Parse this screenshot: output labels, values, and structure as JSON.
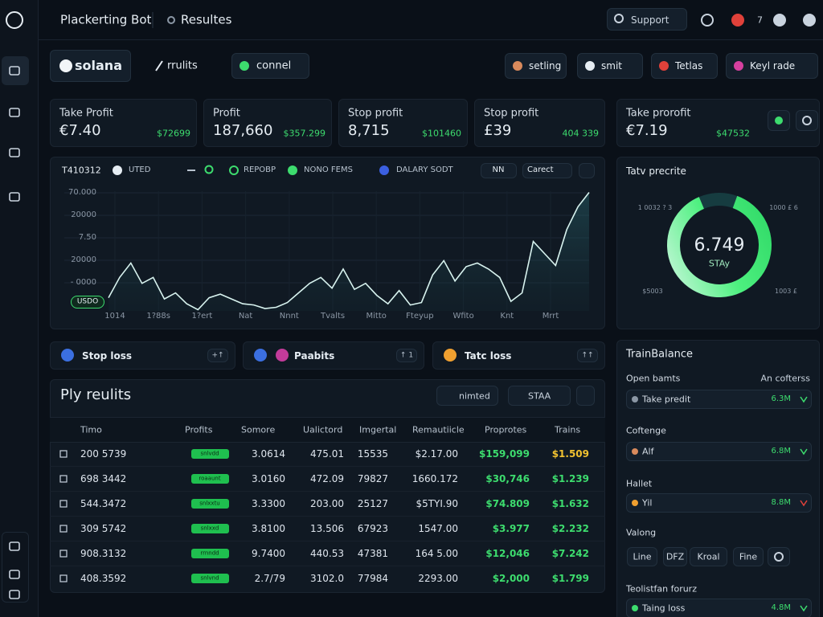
{
  "topbar": {
    "app": "Plackerting Bot",
    "page": "Resultes",
    "search": "Support",
    "badge": "7"
  },
  "toolbar": {
    "brand": "solana",
    "results": "rrulits",
    "connect": "connel",
    "tabs": [
      "setling",
      "smit",
      "Tetlas",
      "Keyl rade"
    ]
  },
  "stats": [
    {
      "label": "Take Profit",
      "value": "€7.40",
      "change": "$72699"
    },
    {
      "label": "Profit",
      "value": "187,660",
      "change": "$357.299"
    },
    {
      "label": "Stop profit",
      "value": "8,715",
      "change": "$101460"
    },
    {
      "label": "Stop profit",
      "value": "£39",
      "change": "404 339"
    }
  ],
  "side_stat": {
    "label": "Take prorofit",
    "value": "€7.19",
    "change": "$47532"
  },
  "chart": {
    "id": "T410312",
    "legend": [
      "UTED",
      "REPOBP",
      "NONO FEMS",
      "DALARY SODT"
    ],
    "buttons": [
      "NN",
      "Carect"
    ],
    "badge": "USDO",
    "y_labels": [
      "70.000",
      "20000",
      "7.50",
      "20000",
      "- 0000"
    ],
    "x_labels": [
      "1014",
      "1?88s",
      "1?ert",
      "Nat",
      "Nnnt",
      "Tvalts",
      "Mitto",
      "Fteyup",
      "Wfito",
      "Knt",
      "Mrrt"
    ],
    "ylim": [
      0,
      100
    ],
    "values": [
      11,
      28,
      40,
      23,
      28,
      10,
      15,
      6,
      1,
      11,
      14,
      10,
      6,
      5,
      2,
      3,
      7,
      15,
      23,
      28,
      19,
      35,
      18,
      23,
      13,
      6,
      17,
      5,
      7,
      30,
      42,
      25,
      37,
      40,
      35,
      28,
      8,
      15,
      58,
      48,
      38,
      68,
      87,
      99
    ]
  },
  "donut": {
    "title": "Tatv precrite",
    "value": "6.749",
    "sub": "STAy",
    "share": 88,
    "labels": [
      "1 0032 ? 3",
      "1000 £ 6",
      "$5003",
      "1003 £"
    ]
  },
  "filters": [
    {
      "label": "Stop loss",
      "tag": "+↑"
    },
    {
      "label": "Paabits",
      "tag": "↑ 1"
    },
    {
      "label": "Tatc loss",
      "tag": "↑↑"
    }
  ],
  "table": {
    "title": "Ply reulits",
    "buttons": [
      "nimted",
      "STAA"
    ],
    "columns": [
      "Timo",
      "Profits",
      "Somore",
      "Ualictord",
      "Imgertal",
      "Remautiicle",
      "Proprotes",
      "Trains"
    ],
    "rows": [
      [
        "200 5739",
        "snlvdd",
        "3.0614",
        "475.01",
        "15535",
        "$2.17.00",
        "$159,099",
        "$1.509"
      ],
      [
        "698 3442",
        "roaaunt",
        "3.0160",
        "472.09",
        "79827",
        "1660.172",
        "$30,746",
        "$1.239"
      ],
      [
        "544.3472",
        "snlxxtu",
        "3.3300",
        "203.00",
        "25127",
        "$5TYI.90",
        "$74.809",
        "$1.632"
      ],
      [
        "309 5742",
        "snlxxd",
        "3.8100",
        "13.506",
        "67923",
        "1547.00",
        "$3.977",
        "$2.232"
      ],
      [
        "908.3132",
        "rrnndd",
        "9.7400",
        "440.53",
        "47381",
        "164 5.00",
        "$12,046",
        "$7.242"
      ],
      [
        "408.3592",
        "snlvnd",
        "2.7/79",
        "3102.0",
        "77984",
        "2293.00",
        "$2,000",
        "$1.799"
      ]
    ]
  },
  "balance": {
    "title": "TrainBalance",
    "note": "An cofterss",
    "sections": [
      {
        "title": "Open bamts",
        "item": "Take predit",
        "amount": "6.3M"
      },
      {
        "title": "Coftenge",
        "item": "Alf",
        "amount": "6.8M"
      },
      {
        "title": "Hallet",
        "item": "Yil",
        "amount": "8.8M"
      },
      {
        "title": "Teolistfan forurz",
        "item": "Taing loss",
        "amount": "4.8M"
      }
    ],
    "view": {
      "title": "Valong",
      "options": [
        "Line",
        "DFZ",
        "Kroal",
        "Fine"
      ]
    }
  }
}
